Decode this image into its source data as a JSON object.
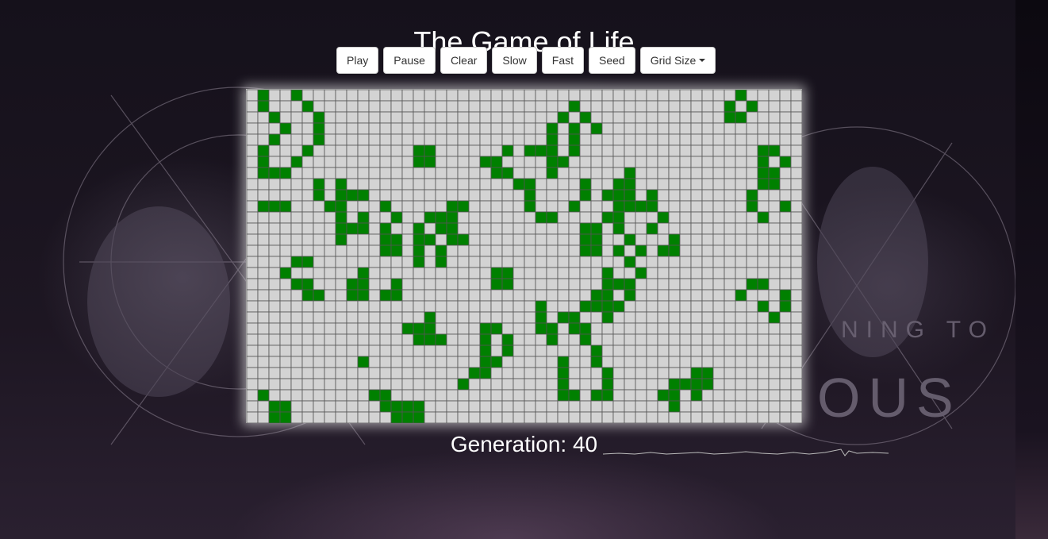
{
  "title": "The Game of Life",
  "toolbar": {
    "play": "Play",
    "pause": "Pause",
    "clear": "Clear",
    "slow": "Slow",
    "fast": "Fast",
    "seed": "Seed",
    "grid_size": "Grid Size"
  },
  "generation": {
    "label": "Generation:",
    "value": 40
  },
  "grid": {
    "cols": 50,
    "rows": 30,
    "alive_color": "#008000",
    "dead_color": "#d3d3d3",
    "line_color": "#555555",
    "live_cells": [
      [
        0,
        1
      ],
      [
        0,
        4
      ],
      [
        0,
        44
      ],
      [
        1,
        1
      ],
      [
        1,
        5
      ],
      [
        1,
        29
      ],
      [
        1,
        43
      ],
      [
        1,
        45
      ],
      [
        2,
        2
      ],
      [
        2,
        6
      ],
      [
        2,
        28
      ],
      [
        2,
        30
      ],
      [
        2,
        43
      ],
      [
        2,
        44
      ],
      [
        3,
        3
      ],
      [
        3,
        6
      ],
      [
        3,
        27
      ],
      [
        3,
        29
      ],
      [
        3,
        31
      ],
      [
        4,
        2
      ],
      [
        4,
        6
      ],
      [
        4,
        27
      ],
      [
        4,
        29
      ],
      [
        5,
        1
      ],
      [
        5,
        5
      ],
      [
        5,
        15
      ],
      [
        5,
        16
      ],
      [
        5,
        23
      ],
      [
        5,
        25
      ],
      [
        5,
        26
      ],
      [
        5,
        27
      ],
      [
        5,
        29
      ],
      [
        5,
        46
      ],
      [
        5,
        47
      ],
      [
        6,
        1
      ],
      [
        6,
        4
      ],
      [
        6,
        15
      ],
      [
        6,
        16
      ],
      [
        6,
        21
      ],
      [
        6,
        22
      ],
      [
        6,
        27
      ],
      [
        6,
        28
      ],
      [
        6,
        46
      ],
      [
        6,
        48
      ],
      [
        7,
        1
      ],
      [
        7,
        2
      ],
      [
        7,
        3
      ],
      [
        7,
        22
      ],
      [
        7,
        23
      ],
      [
        7,
        27
      ],
      [
        7,
        34
      ],
      [
        7,
        46
      ],
      [
        7,
        47
      ],
      [
        8,
        6
      ],
      [
        8,
        8
      ],
      [
        8,
        24
      ],
      [
        8,
        25
      ],
      [
        8,
        30
      ],
      [
        8,
        33
      ],
      [
        8,
        34
      ],
      [
        8,
        46
      ],
      [
        8,
        47
      ],
      [
        9,
        6
      ],
      [
        9,
        8
      ],
      [
        9,
        9
      ],
      [
        9,
        10
      ],
      [
        9,
        25
      ],
      [
        9,
        30
      ],
      [
        9,
        32
      ],
      [
        9,
        33
      ],
      [
        9,
        34
      ],
      [
        9,
        36
      ],
      [
        9,
        45
      ],
      [
        10,
        1
      ],
      [
        10,
        2
      ],
      [
        10,
        3
      ],
      [
        10,
        7
      ],
      [
        10,
        8
      ],
      [
        10,
        12
      ],
      [
        10,
        18
      ],
      [
        10,
        19
      ],
      [
        10,
        25
      ],
      [
        10,
        29
      ],
      [
        10,
        33
      ],
      [
        10,
        34
      ],
      [
        10,
        35
      ],
      [
        10,
        36
      ],
      [
        10,
        45
      ],
      [
        10,
        48
      ],
      [
        11,
        8
      ],
      [
        11,
        10
      ],
      [
        11,
        13
      ],
      [
        11,
        16
      ],
      [
        11,
        17
      ],
      [
        11,
        18
      ],
      [
        11,
        26
      ],
      [
        11,
        27
      ],
      [
        11,
        32
      ],
      [
        11,
        33
      ],
      [
        11,
        37
      ],
      [
        11,
        46
      ],
      [
        12,
        8
      ],
      [
        12,
        9
      ],
      [
        12,
        10
      ],
      [
        12,
        12
      ],
      [
        12,
        15
      ],
      [
        12,
        17
      ],
      [
        12,
        18
      ],
      [
        12,
        30
      ],
      [
        12,
        31
      ],
      [
        12,
        33
      ],
      [
        12,
        36
      ],
      [
        13,
        8
      ],
      [
        13,
        12
      ],
      [
        13,
        13
      ],
      [
        13,
        15
      ],
      [
        13,
        16
      ],
      [
        13,
        18
      ],
      [
        13,
        19
      ],
      [
        13,
        30
      ],
      [
        13,
        31
      ],
      [
        13,
        34
      ],
      [
        13,
        38
      ],
      [
        14,
        12
      ],
      [
        14,
        13
      ],
      [
        14,
        15
      ],
      [
        14,
        17
      ],
      [
        14,
        30
      ],
      [
        14,
        31
      ],
      [
        14,
        33
      ],
      [
        14,
        35
      ],
      [
        14,
        37
      ],
      [
        14,
        38
      ],
      [
        15,
        4
      ],
      [
        15,
        5
      ],
      [
        15,
        15
      ],
      [
        15,
        17
      ],
      [
        15,
        34
      ],
      [
        16,
        3
      ],
      [
        16,
        10
      ],
      [
        16,
        22
      ],
      [
        16,
        23
      ],
      [
        16,
        32
      ],
      [
        16,
        35
      ],
      [
        17,
        4
      ],
      [
        17,
        5
      ],
      [
        17,
        9
      ],
      [
        17,
        10
      ],
      [
        17,
        13
      ],
      [
        17,
        22
      ],
      [
        17,
        23
      ],
      [
        17,
        32
      ],
      [
        17,
        33
      ],
      [
        17,
        34
      ],
      [
        17,
        45
      ],
      [
        17,
        46
      ],
      [
        18,
        5
      ],
      [
        18,
        6
      ],
      [
        18,
        9
      ],
      [
        18,
        10
      ],
      [
        18,
        12
      ],
      [
        18,
        13
      ],
      [
        18,
        31
      ],
      [
        18,
        32
      ],
      [
        18,
        34
      ],
      [
        18,
        44
      ],
      [
        18,
        48
      ],
      [
        19,
        26
      ],
      [
        19,
        30
      ],
      [
        19,
        31
      ],
      [
        19,
        32
      ],
      [
        19,
        33
      ],
      [
        19,
        46
      ],
      [
        19,
        48
      ],
      [
        20,
        16
      ],
      [
        20,
        26
      ],
      [
        20,
        28
      ],
      [
        20,
        29
      ],
      [
        20,
        32
      ],
      [
        20,
        47
      ],
      [
        21,
        14
      ],
      [
        21,
        15
      ],
      [
        21,
        16
      ],
      [
        21,
        21
      ],
      [
        21,
        22
      ],
      [
        21,
        26
      ],
      [
        21,
        27
      ],
      [
        21,
        29
      ],
      [
        21,
        30
      ],
      [
        22,
        15
      ],
      [
        22,
        16
      ],
      [
        22,
        17
      ],
      [
        22,
        21
      ],
      [
        22,
        23
      ],
      [
        22,
        27
      ],
      [
        22,
        30
      ],
      [
        23,
        21
      ],
      [
        23,
        23
      ],
      [
        23,
        31
      ],
      [
        24,
        10
      ],
      [
        24,
        21
      ],
      [
        24,
        22
      ],
      [
        24,
        28
      ],
      [
        24,
        31
      ],
      [
        25,
        20
      ],
      [
        25,
        21
      ],
      [
        25,
        28
      ],
      [
        25,
        32
      ],
      [
        25,
        40
      ],
      [
        25,
        41
      ],
      [
        26,
        19
      ],
      [
        26,
        28
      ],
      [
        26,
        32
      ],
      [
        26,
        38
      ],
      [
        26,
        39
      ],
      [
        26,
        40
      ],
      [
        26,
        41
      ],
      [
        27,
        1
      ],
      [
        27,
        11
      ],
      [
        27,
        12
      ],
      [
        27,
        28
      ],
      [
        27,
        29
      ],
      [
        27,
        31
      ],
      [
        27,
        32
      ],
      [
        27,
        37
      ],
      [
        27,
        38
      ],
      [
        27,
        40
      ],
      [
        28,
        2
      ],
      [
        28,
        3
      ],
      [
        28,
        12
      ],
      [
        28,
        13
      ],
      [
        28,
        14
      ],
      [
        28,
        15
      ],
      [
        28,
        38
      ],
      [
        29,
        2
      ],
      [
        29,
        3
      ],
      [
        29,
        13
      ],
      [
        29,
        14
      ],
      [
        29,
        15
      ]
    ]
  }
}
